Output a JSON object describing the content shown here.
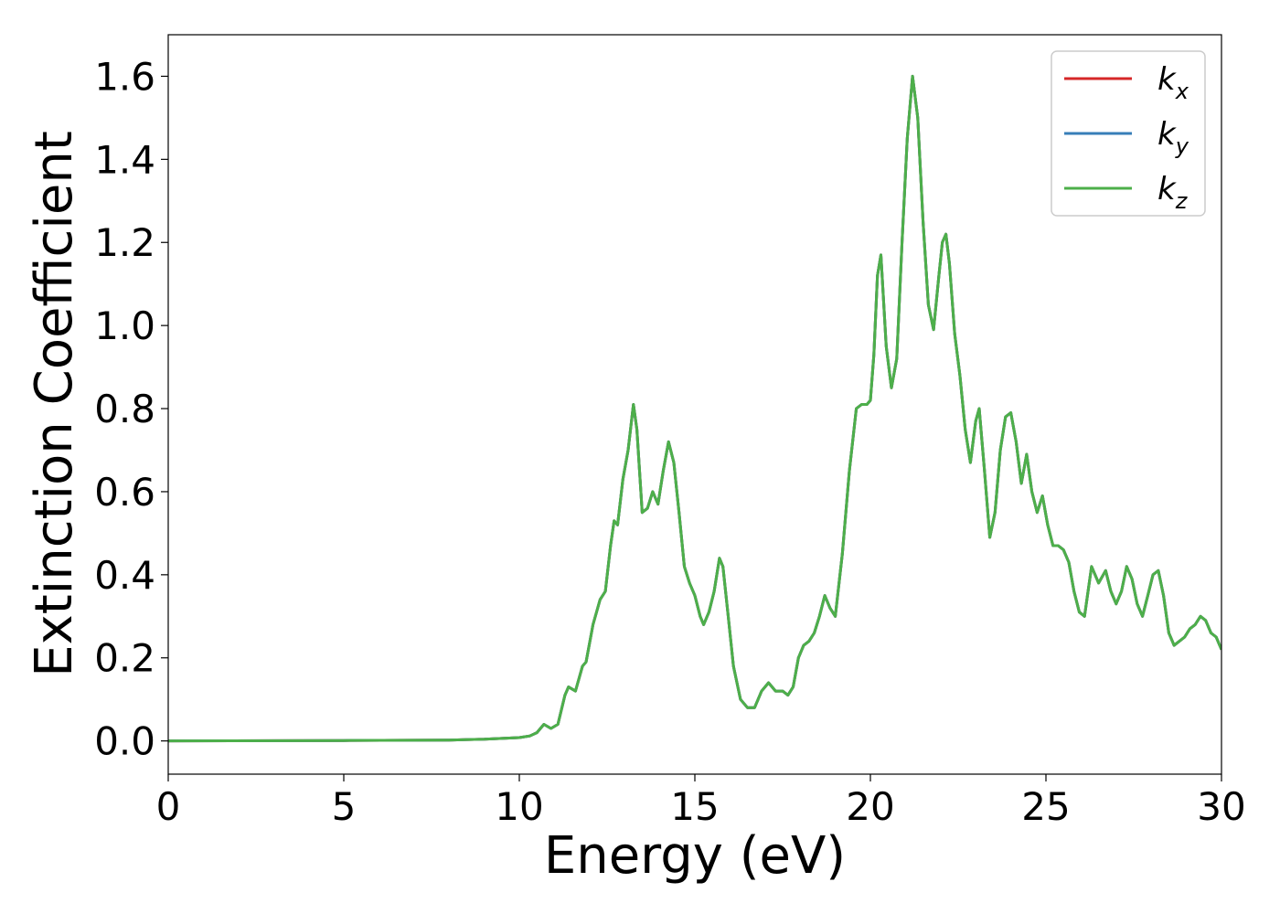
{
  "chart_data": {
    "type": "line",
    "title": "",
    "xlabel": "Energy (eV)",
    "ylabel": "Extinction Coefficient",
    "xlim": [
      0,
      30
    ],
    "ylim": [
      -0.08,
      1.7
    ],
    "xticks": [
      0,
      5,
      10,
      15,
      20,
      25,
      30
    ],
    "yticks": [
      0.0,
      0.2,
      0.4,
      0.6,
      0.8,
      1.0,
      1.2,
      1.4,
      1.6
    ],
    "xtick_labels": [
      "0",
      "5",
      "10",
      "15",
      "20",
      "25",
      "30"
    ],
    "ytick_labels": [
      "0.0",
      "0.2",
      "0.4",
      "0.6",
      "0.8",
      "1.0",
      "1.2",
      "1.4",
      "1.6"
    ],
    "grid": false,
    "legend": {
      "position": "top-right",
      "entries": [
        {
          "base": "k",
          "sub": "x",
          "color": "#d62728"
        },
        {
          "base": "k",
          "sub": "y",
          "color": "#377eb8"
        },
        {
          "base": "k",
          "sub": "z",
          "color": "#4daf4a"
        }
      ]
    },
    "x": [
      0,
      5,
      8,
      9,
      9.5,
      10,
      10.3,
      10.5,
      10.7,
      10.9,
      11.1,
      11.3,
      11.4,
      11.6,
      11.8,
      11.9,
      12.1,
      12.3,
      12.45,
      12.6,
      12.7,
      12.8,
      12.95,
      13.1,
      13.25,
      13.35,
      13.5,
      13.65,
      13.8,
      13.95,
      14.1,
      14.25,
      14.4,
      14.55,
      14.7,
      14.85,
      15.0,
      15.15,
      15.25,
      15.4,
      15.55,
      15.7,
      15.8,
      15.95,
      16.1,
      16.3,
      16.5,
      16.7,
      16.9,
      17.1,
      17.3,
      17.5,
      17.65,
      17.8,
      17.95,
      18.1,
      18.25,
      18.4,
      18.55,
      18.7,
      18.85,
      19.0,
      19.2,
      19.4,
      19.6,
      19.75,
      19.9,
      20.0,
      20.1,
      20.2,
      20.3,
      20.45,
      20.6,
      20.75,
      20.9,
      21.05,
      21.2,
      21.35,
      21.5,
      21.65,
      21.8,
      21.95,
      22.05,
      22.15,
      22.25,
      22.4,
      22.55,
      22.7,
      22.85,
      23.0,
      23.1,
      23.25,
      23.4,
      23.55,
      23.7,
      23.85,
      24.0,
      24.15,
      24.3,
      24.45,
      24.6,
      24.75,
      24.9,
      25.05,
      25.2,
      25.35,
      25.5,
      25.65,
      25.8,
      25.95,
      26.1,
      26.3,
      26.5,
      26.7,
      26.85,
      27.0,
      27.15,
      27.3,
      27.45,
      27.6,
      27.75,
      27.9,
      28.05,
      28.2,
      28.35,
      28.5,
      28.65,
      28.8,
      28.95,
      29.1,
      29.25,
      29.4,
      29.55,
      29.7,
      29.85,
      30.0
    ],
    "series": [
      {
        "name": "k_x",
        "color": "#d62728",
        "values": [
          0.0,
          0.001,
          0.002,
          0.004,
          0.006,
          0.008,
          0.012,
          0.02,
          0.04,
          0.03,
          0.04,
          0.11,
          0.13,
          0.12,
          0.18,
          0.19,
          0.28,
          0.34,
          0.36,
          0.47,
          0.53,
          0.52,
          0.63,
          0.7,
          0.81,
          0.75,
          0.55,
          0.56,
          0.6,
          0.57,
          0.65,
          0.72,
          0.67,
          0.55,
          0.42,
          0.38,
          0.35,
          0.3,
          0.28,
          0.31,
          0.36,
          0.44,
          0.42,
          0.3,
          0.18,
          0.1,
          0.08,
          0.08,
          0.12,
          0.14,
          0.12,
          0.12,
          0.11,
          0.13,
          0.2,
          0.23,
          0.24,
          0.26,
          0.3,
          0.35,
          0.32,
          0.3,
          0.45,
          0.65,
          0.8,
          0.81,
          0.81,
          0.82,
          0.93,
          1.12,
          1.17,
          0.95,
          0.85,
          0.92,
          1.2,
          1.45,
          1.6,
          1.5,
          1.25,
          1.05,
          0.99,
          1.12,
          1.2,
          1.22,
          1.15,
          0.98,
          0.88,
          0.75,
          0.67,
          0.77,
          0.8,
          0.65,
          0.49,
          0.55,
          0.7,
          0.78,
          0.79,
          0.72,
          0.62,
          0.69,
          0.6,
          0.55,
          0.59,
          0.52,
          0.47,
          0.47,
          0.46,
          0.43,
          0.36,
          0.31,
          0.3,
          0.42,
          0.38,
          0.41,
          0.36,
          0.33,
          0.36,
          0.42,
          0.39,
          0.33,
          0.3,
          0.35,
          0.4,
          0.41,
          0.35,
          0.26,
          0.23,
          0.24,
          0.25,
          0.27,
          0.28,
          0.3,
          0.29,
          0.26,
          0.25,
          0.22
        ]
      },
      {
        "name": "k_y",
        "color": "#377eb8",
        "values": [
          0.0,
          0.001,
          0.002,
          0.004,
          0.006,
          0.008,
          0.012,
          0.02,
          0.04,
          0.03,
          0.04,
          0.11,
          0.13,
          0.12,
          0.18,
          0.19,
          0.28,
          0.34,
          0.36,
          0.47,
          0.53,
          0.52,
          0.63,
          0.7,
          0.81,
          0.75,
          0.55,
          0.56,
          0.6,
          0.57,
          0.65,
          0.72,
          0.67,
          0.55,
          0.42,
          0.38,
          0.35,
          0.3,
          0.28,
          0.31,
          0.36,
          0.44,
          0.42,
          0.3,
          0.18,
          0.1,
          0.08,
          0.08,
          0.12,
          0.14,
          0.12,
          0.12,
          0.11,
          0.13,
          0.2,
          0.23,
          0.24,
          0.26,
          0.3,
          0.35,
          0.32,
          0.3,
          0.45,
          0.65,
          0.8,
          0.81,
          0.81,
          0.82,
          0.93,
          1.12,
          1.17,
          0.95,
          0.85,
          0.92,
          1.2,
          1.45,
          1.6,
          1.5,
          1.25,
          1.05,
          0.99,
          1.12,
          1.2,
          1.22,
          1.15,
          0.98,
          0.88,
          0.75,
          0.67,
          0.77,
          0.8,
          0.65,
          0.49,
          0.55,
          0.7,
          0.78,
          0.79,
          0.72,
          0.62,
          0.69,
          0.6,
          0.55,
          0.59,
          0.52,
          0.47,
          0.47,
          0.46,
          0.43,
          0.36,
          0.31,
          0.3,
          0.42,
          0.38,
          0.41,
          0.36,
          0.33,
          0.36,
          0.42,
          0.39,
          0.33,
          0.3,
          0.35,
          0.4,
          0.41,
          0.35,
          0.26,
          0.23,
          0.24,
          0.25,
          0.27,
          0.28,
          0.3,
          0.29,
          0.26,
          0.25,
          0.22
        ]
      },
      {
        "name": "k_z",
        "color": "#4daf4a",
        "values": [
          0.0,
          0.001,
          0.002,
          0.004,
          0.006,
          0.008,
          0.012,
          0.02,
          0.04,
          0.03,
          0.04,
          0.11,
          0.13,
          0.12,
          0.18,
          0.19,
          0.28,
          0.34,
          0.36,
          0.47,
          0.53,
          0.52,
          0.63,
          0.7,
          0.81,
          0.75,
          0.55,
          0.56,
          0.6,
          0.57,
          0.65,
          0.72,
          0.67,
          0.55,
          0.42,
          0.38,
          0.35,
          0.3,
          0.28,
          0.31,
          0.36,
          0.44,
          0.42,
          0.3,
          0.18,
          0.1,
          0.08,
          0.08,
          0.12,
          0.14,
          0.12,
          0.12,
          0.11,
          0.13,
          0.2,
          0.23,
          0.24,
          0.26,
          0.3,
          0.35,
          0.32,
          0.3,
          0.45,
          0.65,
          0.8,
          0.81,
          0.81,
          0.82,
          0.93,
          1.12,
          1.17,
          0.95,
          0.85,
          0.92,
          1.2,
          1.45,
          1.6,
          1.5,
          1.25,
          1.05,
          0.99,
          1.12,
          1.2,
          1.22,
          1.15,
          0.98,
          0.88,
          0.75,
          0.67,
          0.77,
          0.8,
          0.65,
          0.49,
          0.55,
          0.7,
          0.78,
          0.79,
          0.72,
          0.62,
          0.69,
          0.6,
          0.55,
          0.59,
          0.52,
          0.47,
          0.47,
          0.46,
          0.43,
          0.36,
          0.31,
          0.3,
          0.42,
          0.38,
          0.41,
          0.36,
          0.33,
          0.36,
          0.42,
          0.39,
          0.33,
          0.3,
          0.35,
          0.4,
          0.41,
          0.35,
          0.26,
          0.23,
          0.24,
          0.25,
          0.27,
          0.28,
          0.3,
          0.29,
          0.26,
          0.25,
          0.22
        ]
      }
    ]
  }
}
